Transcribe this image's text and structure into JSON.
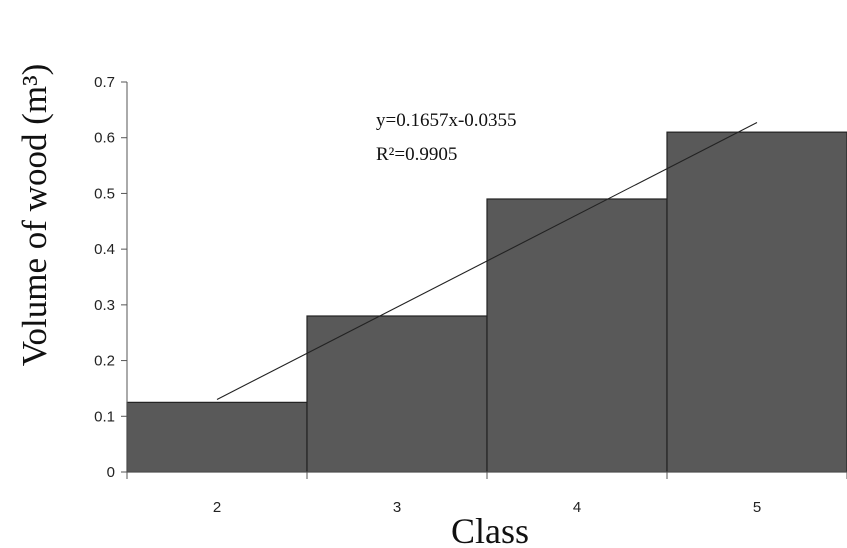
{
  "chart_data": {
    "type": "bar",
    "title": "",
    "xlabel": "Class",
    "ylabel": "Volume of wood (m³)",
    "categories": [
      "2",
      "3",
      "4",
      "5"
    ],
    "values": [
      0.125,
      0.28,
      0.49,
      0.61
    ],
    "ylim": [
      0,
      0.7
    ],
    "yticks": [
      "0",
      "0.1",
      "0.2",
      "0.3",
      "0.4",
      "0.5",
      "0.6",
      "0.7"
    ],
    "bar_color": "#595959",
    "grid": false,
    "legend": "none",
    "trendline": {
      "type": "linear",
      "slope": 0.1657,
      "intercept": -0.0355,
      "equation": "y=0.1657x-0.0355",
      "r_squared": "R²=0.9905"
    }
  }
}
